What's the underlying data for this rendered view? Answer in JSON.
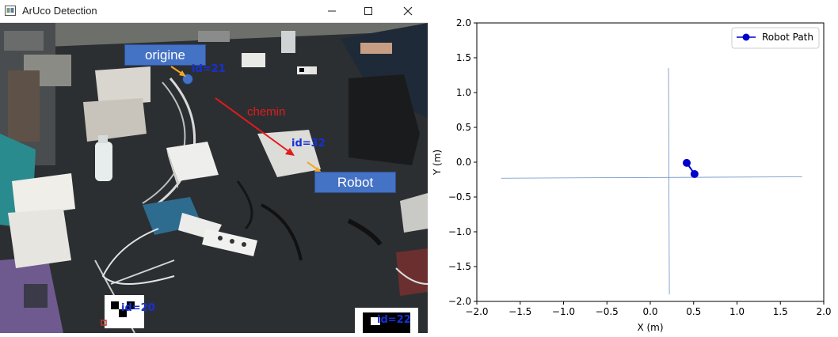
{
  "window": {
    "title": "ArUco Detection",
    "controls": [
      "minimize",
      "maximize",
      "close"
    ]
  },
  "camera_view": {
    "labels": {
      "origin": "origine",
      "path": "chemin",
      "robot": "Robot"
    },
    "markers": [
      {
        "label": "id=21"
      },
      {
        "label": "id=32"
      },
      {
        "label": "id=20"
      },
      {
        "label": "id=22"
      }
    ],
    "colors": {
      "label_box": "#4472c4",
      "marker_text": "#1530d6",
      "path_arrow": "#e21b1b",
      "orange_arrow": "#f5a623"
    }
  },
  "chart_data": {
    "type": "line",
    "title": "",
    "xlabel": "X (m)",
    "ylabel": "Y (m)",
    "xlim": [
      -2.0,
      2.0
    ],
    "ylim": [
      -2.0,
      2.0
    ],
    "xticks": [
      "−2.0",
      "−1.5",
      "−1.0",
      "−0.5",
      "0.0",
      "0.5",
      "1.0",
      "1.5",
      "2.0"
    ],
    "yticks": [
      "2.0",
      "1.5",
      "1.0",
      "0.5",
      "0.0",
      "−0.5",
      "−1.0",
      "−1.5",
      "−2.0"
    ],
    "grid": false,
    "legend": "top-right",
    "series": [
      {
        "name": "Robot Path",
        "color": "#0000cc",
        "x": [
          0.42,
          0.51
        ],
        "y": [
          -0.01,
          -0.17
        ]
      }
    ],
    "reference_lines": [
      {
        "x": [
          0.21,
          0.22
        ],
        "y": [
          1.35,
          -1.9
        ],
        "color": "#6b8fc9"
      },
      {
        "x": [
          -1.72,
          1.75
        ],
        "y": [
          -0.23,
          -0.21
        ],
        "color": "#6b8fc9"
      }
    ]
  }
}
